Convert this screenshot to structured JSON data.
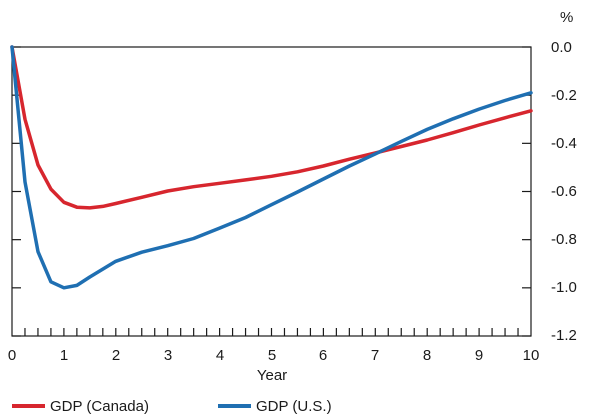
{
  "chart_data": {
    "type": "line",
    "xlabel": "Year",
    "ylabel": "%",
    "xlim": [
      0,
      10
    ],
    "ylim": [
      -1.2,
      0.0
    ],
    "x_ticks": [
      "0",
      "1",
      "2",
      "3",
      "4",
      "5",
      "6",
      "7",
      "8",
      "9",
      "10"
    ],
    "y_ticks": [
      "0.0",
      "-0.2",
      "-0.4",
      "-0.6",
      "-0.8",
      "-1.0",
      "-1.2"
    ],
    "y_tick_values": [
      0.0,
      -0.2,
      -0.4,
      -0.6,
      -0.8,
      -1.0,
      -1.2
    ],
    "grid": false,
    "legend_position": "bottom-left",
    "series": [
      {
        "name": "GDP (Canada)",
        "color": "#d7262e",
        "points": [
          [
            0,
            0.0
          ],
          [
            0.25,
            -0.3
          ],
          [
            0.5,
            -0.49
          ],
          [
            0.75,
            -0.59
          ],
          [
            1.0,
            -0.645
          ],
          [
            1.25,
            -0.665
          ],
          [
            1.5,
            -0.668
          ],
          [
            1.75,
            -0.662
          ],
          [
            2.0,
            -0.65
          ],
          [
            2.5,
            -0.624
          ],
          [
            3.0,
            -0.598
          ],
          [
            3.5,
            -0.58
          ],
          [
            4.0,
            -0.566
          ],
          [
            4.5,
            -0.552
          ],
          [
            5.0,
            -0.537
          ],
          [
            5.5,
            -0.518
          ],
          [
            6.0,
            -0.494
          ],
          [
            6.5,
            -0.466
          ],
          [
            7.0,
            -0.44
          ],
          [
            7.5,
            -0.413
          ],
          [
            8.0,
            -0.386
          ],
          [
            8.5,
            -0.356
          ],
          [
            9.0,
            -0.324
          ],
          [
            9.5,
            -0.294
          ],
          [
            10.0,
            -0.265
          ]
        ]
      },
      {
        "name": "GDP (U.S.)",
        "color": "#1f6fb2",
        "points": [
          [
            0,
            0.0
          ],
          [
            0.25,
            -0.56
          ],
          [
            0.5,
            -0.85
          ],
          [
            0.75,
            -0.975
          ],
          [
            1.0,
            -1.0
          ],
          [
            1.25,
            -0.99
          ],
          [
            1.5,
            -0.955
          ],
          [
            2.0,
            -0.89
          ],
          [
            2.5,
            -0.852
          ],
          [
            3.0,
            -0.825
          ],
          [
            3.5,
            -0.795
          ],
          [
            4.0,
            -0.752
          ],
          [
            4.5,
            -0.708
          ],
          [
            5.0,
            -0.655
          ],
          [
            5.5,
            -0.602
          ],
          [
            6.0,
            -0.548
          ],
          [
            6.5,
            -0.494
          ],
          [
            7.0,
            -0.444
          ],
          [
            7.5,
            -0.392
          ],
          [
            8.0,
            -0.342
          ],
          [
            8.5,
            -0.298
          ],
          [
            9.0,
            -0.258
          ],
          [
            9.5,
            -0.222
          ],
          [
            10.0,
            -0.19
          ]
        ]
      }
    ]
  }
}
